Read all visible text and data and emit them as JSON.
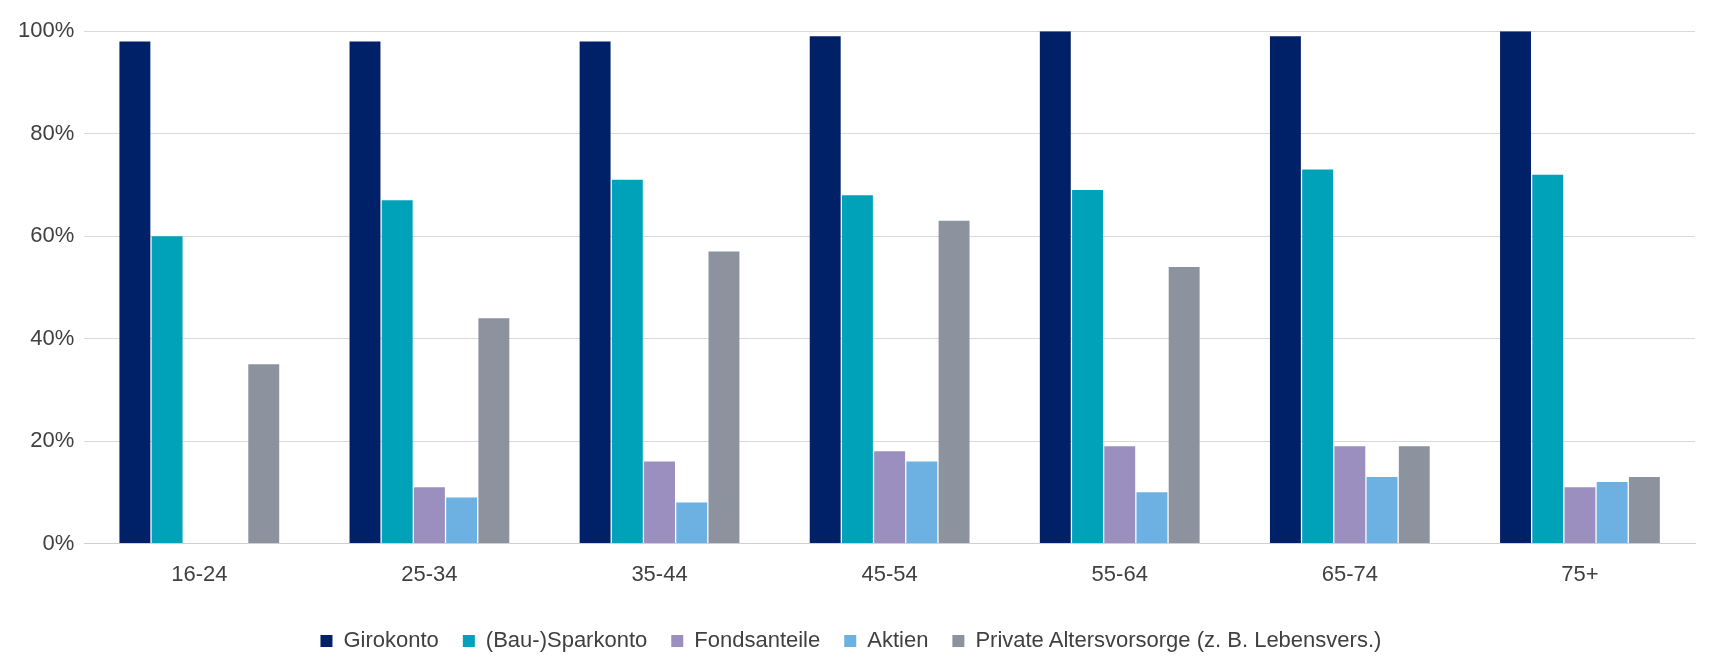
{
  "chart_data": {
    "type": "bar",
    "categories": [
      "16-24",
      "25-34",
      "35-44",
      "45-54",
      "55-64",
      "65-74",
      "75+"
    ],
    "series": [
      {
        "name": "Girokonto",
        "color": "#002068",
        "values": [
          98,
          98,
          98,
          99,
          100,
          99,
          100
        ]
      },
      {
        "name": "(Bau-)Sparkonto",
        "color": "#00a2b9",
        "values": [
          60,
          67,
          71,
          68,
          69,
          73,
          72
        ]
      },
      {
        "name": "Fondsanteile",
        "color": "#9b8fc0",
        "values": [
          null,
          11,
          16,
          18,
          19,
          19,
          11
        ]
      },
      {
        "name": "Aktien",
        "color": "#6db1e2",
        "values": [
          null,
          9,
          8,
          16,
          10,
          13,
          12
        ]
      },
      {
        "name": "Private Altersvorsorge (z. B. Lebensvers.)",
        "color": "#8c939e",
        "values": [
          35,
          44,
          57,
          63,
          54,
          19,
          13
        ]
      }
    ],
    "ylim": [
      0,
      100
    ],
    "yticks": [
      {
        "value": 0,
        "label": "0%"
      },
      {
        "value": 20,
        "label": "20%"
      },
      {
        "value": 40,
        "label": "40%"
      },
      {
        "value": 60,
        "label": "60%"
      },
      {
        "value": 80,
        "label": "80%"
      },
      {
        "value": 100,
        "label": "100%"
      }
    ],
    "grid": "y",
    "legend": "bottom"
  }
}
